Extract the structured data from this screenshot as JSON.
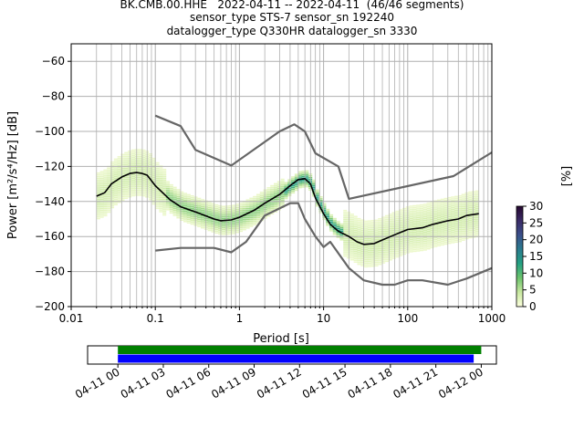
{
  "title_lines": [
    "BK.CMB.00.HHE   2022-04-11 -- 2022-04-11  (46/46 segments)",
    "sensor_type STS-7 sensor_sn 192240",
    "datalogger_type Q330HR datalogger_sn 3330"
  ],
  "chart_data": [
    {
      "type": "heatmap",
      "title": "",
      "xlabel": "Period [s]",
      "ylabel": "Power [m²/s⁴/Hz] [dB]",
      "xscale": "log",
      "xlim": [
        0.01,
        1000
      ],
      "ylim": [
        -200,
        -50
      ],
      "xtick_labels": [
        "0.01",
        "0.1",
        "1",
        "10",
        "100",
        "1000"
      ],
      "xtick_values": [
        0.01,
        0.1,
        1,
        10,
        100,
        1000
      ],
      "ytick_values": [
        -200,
        -180,
        -160,
        -140,
        -120,
        -100,
        -80,
        -60
      ],
      "ytick_labels": [
        "−200",
        "−180",
        "−160",
        "−140",
        "−120",
        "−100",
        "−80",
        "−60"
      ],
      "grid": true,
      "colorbar": {
        "label": "[%]",
        "range": [
          0,
          30
        ],
        "ticks": [
          0,
          5,
          10,
          15,
          20,
          25,
          30
        ],
        "colormap": [
          "#fcffdd",
          "#c8e8a0",
          "#6cc36c",
          "#24a082",
          "#2a7b8e",
          "#3b4f8a",
          "#3a2b66",
          "#26072f"
        ]
      },
      "series": [
        {
          "name": "",
          "color": "#000000",
          "x": [
            0.02,
            0.025,
            0.03,
            0.04,
            0.05,
            0.06,
            0.07,
            0.08,
            0.1,
            0.15,
            0.2,
            0.3,
            0.5,
            0.6,
            0.8,
            1,
            1.5,
            2,
            3,
            4,
            5,
            6,
            7,
            8,
            10,
            12,
            15,
            20,
            25,
            30,
            40,
            50,
            70,
            100,
            150,
            200,
            300,
            400,
            500,
            700
          ],
          "y": [
            -137,
            -135,
            -130,
            -126,
            -124,
            -123.5,
            -124,
            -125,
            -131,
            -139,
            -143,
            -146,
            -150,
            -151,
            -150.5,
            -149,
            -145,
            -141,
            -136,
            -131,
            -127.5,
            -127,
            -130,
            -138,
            -147,
            -153,
            -157,
            -160,
            -163,
            -164.5,
            -164,
            -162,
            -159,
            -156,
            -155,
            -153,
            -151,
            -150,
            -148,
            -147
          ]
        },
        {
          "name": "",
          "color": "#666666",
          "x": [
            0.1,
            0.2,
            0.3,
            0.8,
            3,
            4.5,
            6,
            8,
            15,
            20,
            350,
            1000
          ],
          "y": [
            -91,
            -97,
            -110.5,
            -119.5,
            -100,
            -96,
            -100,
            -112.5,
            -120,
            -138.5,
            -125.5,
            -112
          ]
        },
        {
          "name": "",
          "color": "#666666",
          "x": [
            0.1,
            0.2,
            0.5,
            0.8,
            1.2,
            2,
            4,
            5,
            6,
            8,
            10,
            12,
            20,
            30,
            50,
            70,
            100,
            150,
            300,
            500,
            1000
          ],
          "y": [
            -168,
            -166.5,
            -166.5,
            -169,
            -163,
            -148,
            -141,
            -141,
            -150,
            -160,
            -166,
            -163,
            -178,
            -185,
            -187.5,
            -187.5,
            -185,
            -185,
            -187.5,
            -184,
            -178
          ]
        }
      ]
    },
    {
      "type": "timeline",
      "title": "",
      "xlabel": "",
      "ylabel": "",
      "xlim": [
        "2022-04-10 22:00",
        "2022-04-12 01:00"
      ],
      "xtick_labels": [
        "04-11 00",
        "04-11 03",
        "04-11 06",
        "04-11 09",
        "04-11 12",
        "04-11 15",
        "04-11 18",
        "04-11 21",
        "04-12 00"
      ],
      "bars": [
        {
          "color": "#008000",
          "start": "2022-04-11 00:00",
          "end": "2022-04-12 00:00"
        },
        {
          "color": "#0000ff",
          "start": "2022-04-11 00:00",
          "end": "2022-04-11 23:30"
        }
      ]
    }
  ]
}
